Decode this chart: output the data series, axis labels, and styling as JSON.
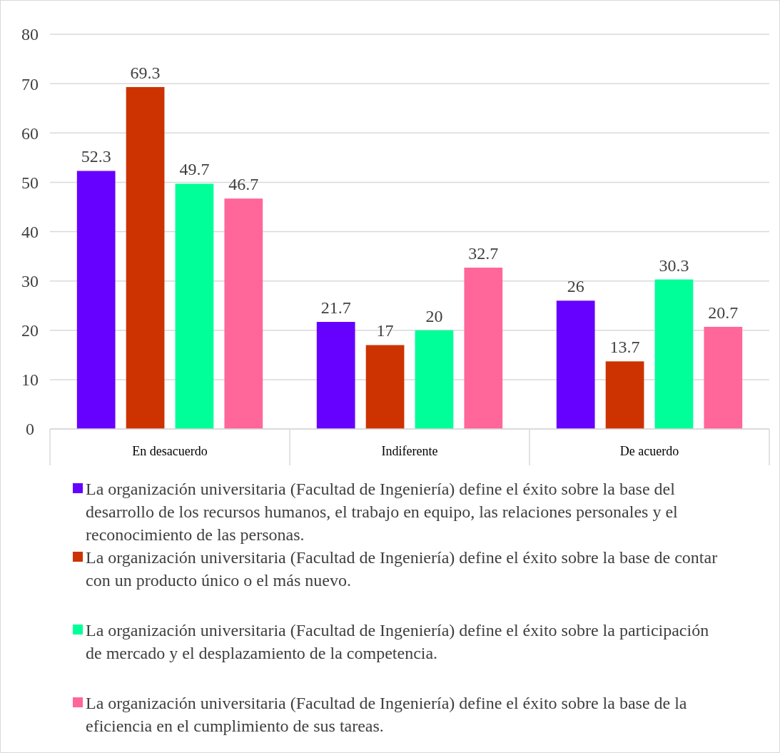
{
  "chart_data": {
    "type": "bar",
    "categories": [
      "En desacuerdo",
      "Indiferente",
      "De acuerdo"
    ],
    "series": [
      {
        "name": "La organización universitaria (Facultad de Ingeniería) define el éxito sobre la base del desarrollo de los recursos humanos, el trabajo en equipo, las relaciones personales y el reconocimiento de las personas.",
        "color": "#6600ff",
        "values": [
          52.3,
          21.7,
          26
        ]
      },
      {
        "name": "La organización universitaria (Facultad de Ingeniería) define el éxito sobre la base de contar con un producto único o el más nuevo.",
        "color": "#cc3300",
        "values": [
          69.3,
          17,
          13.7
        ]
      },
      {
        "name": "La organización universitaria (Facultad de Ingeniería) define el éxito sobre la participación de mercado y el desplazamiento de la competencia.",
        "color": "#00ff99",
        "values": [
          49.7,
          20,
          30.3
        ]
      },
      {
        "name": "La organización universitaria (Facultad de Ingeniería) define el éxito sobre la base de la eficiencia en el cumplimiento de sus tareas.",
        "color": "#ff6699",
        "values": [
          46.7,
          32.7,
          20.7
        ]
      }
    ],
    "ylim": [
      0,
      80
    ],
    "yticks": [
      0,
      10,
      20,
      30,
      40,
      50,
      60,
      70,
      80
    ],
    "grid": "y",
    "legend": "bottom",
    "data_labels": true
  }
}
